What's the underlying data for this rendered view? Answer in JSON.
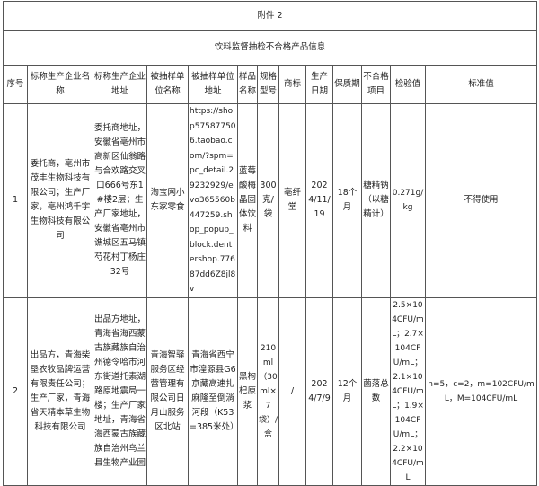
{
  "attachment_label": "附件 2",
  "title": "饮料监督抽检不合格产品信息",
  "headers": [
    "序号",
    "标称生产企业名称",
    "标称生产企业地址",
    "被抽样单位名称",
    "被抽样单位地址",
    "样品名称",
    "规格型号",
    "商标",
    "生产日期",
    "保质期",
    "不合格项目",
    "检验值",
    "标准值"
  ],
  "rows": [
    {
      "no": "1",
      "manufacturer": "委托商，亳州市茂丰生物科技有限公司；生产厂家，亳州鸿千宇生物科技有限公司",
      "manufacturer_address": "委托商地址，安徽省亳州市高新区仙翁路与合欢路交叉口666号东1#楼2层；生产厂家地址，安徽省亳州市谯城区五马镇芍花村丁杨庄32号",
      "sampled_unit": "淘宝网小东家零食",
      "sampled_address": "https://shop575877506.taobao.com/?spm=pc_detail.29232929/evo365560b447259.shop_popup_block.dentershop.77687dd6Z8jl8v",
      "sample_name": "蓝莓酸梅晶固体饮料",
      "spec": "300克/袋",
      "brand": "亳纤堂",
      "production_date": "2024/11/19",
      "shelf_life": "18个月",
      "failed_item": "糖精钠（以糖精计）",
      "test_value": "0.271g/kg",
      "standard_value": "不得使用"
    },
    {
      "no": "2",
      "manufacturer": "出品方，青海柴垦农牧品牌运营有限责任公司；生产厂家，青海省天精本草生物科技有限公司",
      "manufacturer_address": "出品方地址，青海省海西蒙古族藏族自治州德令哈市河东街道托素湖路原地震局一楼；生产厂家地址，青海省海西蒙古族藏族自治州乌兰县生物产业园",
      "sampled_unit": "青海智驿服务区经营管理有限公司日月山服务区北站",
      "sampled_address": "青海省西宁市湟源县G6京藏高速扎麻隆至倒淌河段（K53=385米处）",
      "sample_name": "黑枸杞原浆",
      "spec": "210ml（30ml×7袋）/盒",
      "brand": "/",
      "production_date": "2024/7/9",
      "shelf_life": "12个月",
      "failed_item": "菌落总数",
      "test_value": "2.5×104CFU/mL；2.7×104CFU/mL；2.1×104CFU/mL；1.9×104CFU/mL；2.2×104CFU/mL",
      "standard_value": "n=5，c=2，m=102CFU/mL，M=104CFU/mL"
    }
  ]
}
